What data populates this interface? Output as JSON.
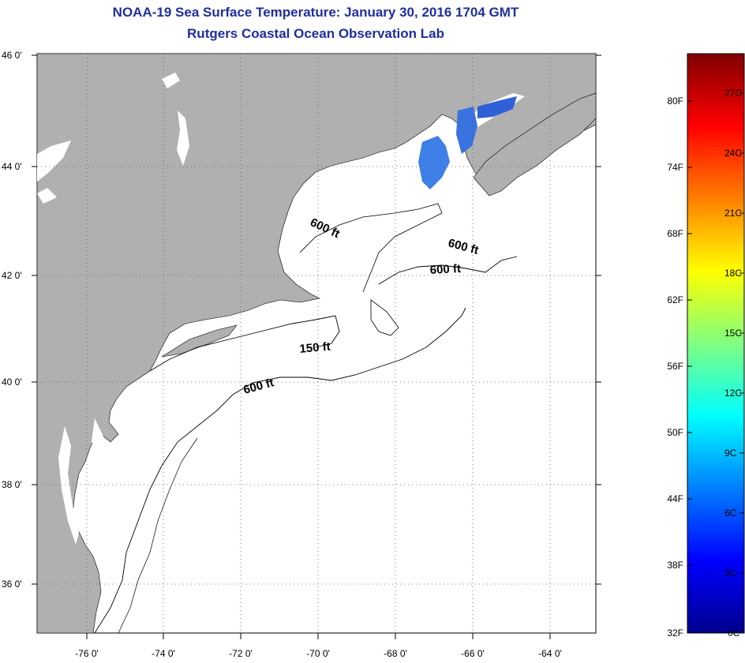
{
  "title": "NOAA-19 Sea Surface Temperature:  January 30, 2016 1704 GMT",
  "subtitle": "Rutgers Coastal Ocean Observation Lab",
  "map": {
    "lat_labels": [
      "46 0'",
      "44 0'",
      "42 0'",
      "40 0'",
      "38 0'",
      "36 0'"
    ],
    "lat_values": [
      46,
      44,
      42,
      40,
      38,
      36
    ],
    "lon_labels": [
      "-76 0'",
      "-74 0'",
      "-72 0'",
      "-70 0'",
      "-68 0'",
      "-66 0'",
      "-64 0'"
    ],
    "lon_values": [
      -76,
      -74,
      -72,
      -70,
      -68,
      -66,
      -64
    ],
    "lon_range": [
      -77,
      -63.5
    ],
    "lat_range": [
      35,
      46
    ],
    "grid": "dotted",
    "depth_contours": [
      {
        "label": "600 ft"
      },
      {
        "label": "600 ft"
      },
      {
        "label": "600 ft"
      },
      {
        "label": "150 ft"
      },
      {
        "label": "600 ft"
      }
    ],
    "colors": {
      "land": "#b0b0b0",
      "ocean": "#ffffff",
      "sst_patch": "#3f7fe8"
    }
  },
  "colorbar": {
    "fahrenheit_labels": [
      "80F",
      "74F",
      "68F",
      "62F",
      "56F",
      "50F",
      "44F",
      "38F",
      "32F"
    ],
    "celsius_labels": [
      "27C",
      "24C",
      "21C",
      "18C",
      "15C",
      "12C",
      "9C",
      "6C",
      "3C",
      "0C"
    ],
    "range_c": [
      0,
      29
    ]
  }
}
